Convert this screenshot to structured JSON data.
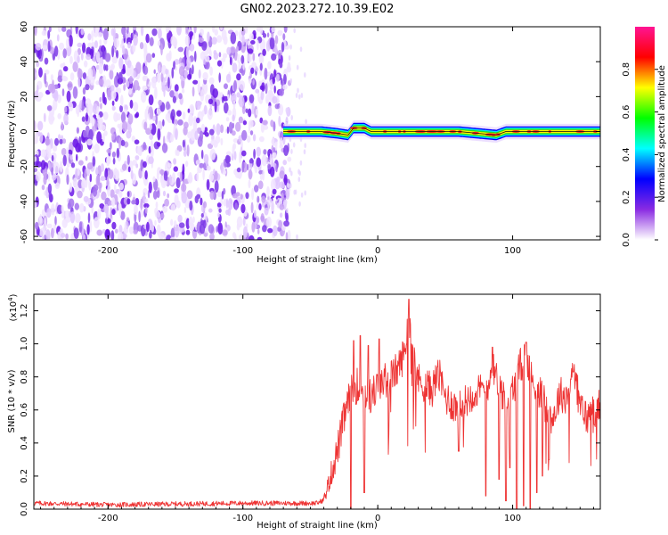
{
  "title": "GN02.2023.272.10.39.E02",
  "chart_data": [
    {
      "type": "heatmap",
      "xlabel": "Height of straight line (km)",
      "ylabel": "Frequency (Hz)",
      "xlim": [
        -255,
        165
      ],
      "ylim": [
        -62,
        60
      ],
      "xticks": [
        -200,
        -100,
        0,
        100
      ],
      "yticks": [
        -60,
        -40,
        -20,
        0,
        20,
        40,
        60
      ],
      "noise_region_x": [
        -255,
        -68
      ],
      "signal_band": {
        "x": [
          -70,
          165
        ],
        "freq_center": 0,
        "freq_halfwidth": 2,
        "offsets": [
          {
            "x": -70,
            "f": 0
          },
          {
            "x": -42,
            "f": 0
          },
          {
            "x": -30,
            "f": -1
          },
          {
            "x": -22,
            "f": -2
          },
          {
            "x": -18,
            "f": 2
          },
          {
            "x": -10,
            "f": 2
          },
          {
            "x": -5,
            "f": 0
          },
          {
            "x": 60,
            "f": 0
          },
          {
            "x": 88,
            "f": -2
          },
          {
            "x": 95,
            "f": 0
          },
          {
            "x": 165,
            "f": 0
          }
        ]
      },
      "colorbar": {
        "label": "Normalized spectral amplitude",
        "range": [
          0.0,
          1.0
        ],
        "ticks": [
          0.0,
          0.2,
          0.4,
          0.6,
          0.8
        ],
        "colors": [
          "#ffffff",
          "#8a2be2",
          "#0000ff",
          "#00ffff",
          "#00ff00",
          "#ffff00",
          "#ff0000",
          "#ff1493"
        ]
      }
    },
    {
      "type": "line",
      "xlabel": "Height of straight line (km)",
      "ylabel": "SNR (10 * v/v)",
      "multiplier": "(x10",
      "multiplier_exp": "4",
      "multiplier_close": ")",
      "xlim": [
        -255,
        165
      ],
      "ylim": [
        0,
        1.3
      ],
      "xticks": [
        -200,
        -100,
        0,
        100
      ],
      "yticks": [
        0.0,
        0.2,
        0.4,
        0.6,
        0.8,
        1.0,
        1.2
      ],
      "color": "#ee3333",
      "trend": [
        [
          -255,
          0.03
        ],
        [
          -200,
          0.02
        ],
        [
          -100,
          0.03
        ],
        [
          -45,
          0.03
        ],
        [
          -40,
          0.05
        ],
        [
          -35,
          0.2
        ],
        [
          -30,
          0.35
        ],
        [
          -25,
          0.55
        ],
        [
          -20,
          0.7
        ],
        [
          -15,
          0.75
        ],
        [
          -10,
          0.7
        ],
        [
          -5,
          0.68
        ],
        [
          0,
          0.75
        ],
        [
          10,
          0.8
        ],
        [
          15,
          0.85
        ],
        [
          20,
          0.95
        ],
        [
          23,
          1.18
        ],
        [
          26,
          1.0
        ],
        [
          30,
          0.78
        ],
        [
          40,
          0.72
        ],
        [
          45,
          0.82
        ],
        [
          50,
          0.68
        ],
        [
          60,
          0.6
        ],
        [
          70,
          0.7
        ],
        [
          80,
          0.72
        ],
        [
          85,
          0.85
        ],
        [
          90,
          0.75
        ],
        [
          95,
          0.65
        ],
        [
          100,
          0.72
        ],
        [
          105,
          0.85
        ],
        [
          110,
          0.95
        ],
        [
          115,
          0.75
        ],
        [
          120,
          0.72
        ],
        [
          125,
          0.6
        ],
        [
          130,
          0.55
        ],
        [
          135,
          0.7
        ],
        [
          140,
          0.68
        ],
        [
          145,
          0.85
        ],
        [
          150,
          0.62
        ],
        [
          155,
          0.55
        ],
        [
          160,
          0.6
        ],
        [
          165,
          0.62
        ]
      ],
      "peaks": [
        [
          -18,
          1.02
        ],
        [
          -13,
          1.05
        ],
        [
          -7,
          0.99
        ],
        [
          1,
          1.03
        ],
        [
          23,
          1.27
        ],
        [
          44,
          0.86
        ],
        [
          85,
          0.98
        ],
        [
          110,
          1.01
        ],
        [
          145,
          0.83
        ]
      ],
      "dips": [
        [
          -20,
          0.0
        ],
        [
          -10,
          0.1
        ],
        [
          8,
          0.45
        ],
        [
          60,
          0.35
        ],
        [
          80,
          0.08
        ],
        [
          90,
          0.18
        ],
        [
          95,
          0.05
        ],
        [
          98,
          0.25
        ],
        [
          103,
          0.0
        ],
        [
          108,
          0.02
        ],
        [
          113,
          0.0
        ],
        [
          118,
          0.1
        ],
        [
          122,
          0.2
        ],
        [
          127,
          0.3
        ]
      ]
    }
  ]
}
